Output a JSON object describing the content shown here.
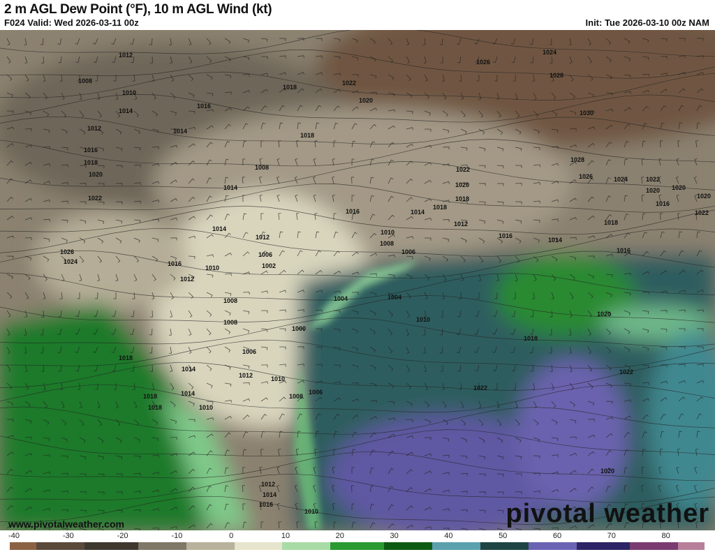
{
  "header": {
    "title": "2 m AGL Dew Point (°F), 10 m AGL Wind (kt)",
    "valid": "F024 Valid: Wed 2026-03-11 00z",
    "init": "Init: Tue 2026-03-10 00z NAM"
  },
  "map": {
    "isobar_labels": [
      "1012",
      "1008",
      "1010",
      "1014",
      "1016",
      "1012",
      "1016",
      "1018",
      "1020",
      "1022",
      "1014",
      "1018",
      "1014",
      "1008",
      "1022",
      "1020",
      "1018",
      "1016",
      "1012",
      "1010",
      "1026",
      "1024",
      "1006",
      "1002",
      "1008",
      "1012",
      "1014",
      "1008",
      "1006",
      "1000",
      "1012",
      "1010",
      "1014",
      "1018",
      "1008",
      "1006",
      "1004",
      "1004",
      "1010",
      "1016",
      "1014",
      "1010",
      "1008",
      "1006",
      "1012",
      "1016",
      "1018",
      "1022",
      "1020",
      "1018",
      "1026",
      "1024",
      "1028",
      "1030",
      "1028",
      "1026",
      "1024",
      "1022",
      "1020",
      "1016",
      "1018",
      "1016",
      "1014",
      "1020",
      "1022",
      "1020",
      "1018",
      "1022",
      "1020",
      "1022",
      "1012",
      "1014",
      "1016",
      "1010",
      "1020",
      "1018",
      "1010",
      "1018",
      "1014"
    ],
    "watermark_url": "www.pivotalweather.com",
    "logo": "pivotal weather"
  },
  "colorbar": {
    "units": "°F",
    "range": [
      -40,
      90
    ],
    "ticks": [
      "-40",
      "-30",
      "-20",
      "-10",
      "0",
      "10",
      "20",
      "30",
      "40",
      "50",
      "60",
      "70",
      "80"
    ],
    "colors": [
      "#8a6243",
      "#5a4a3c",
      "#3e382f",
      "#7f7767",
      "#b8b29c",
      "#e6e4cc",
      "#a9dba6",
      "#2a9a31",
      "#0d5b12",
      "#5aa0ad",
      "#1f4444",
      "#6a63b4",
      "#2d2466",
      "#7a3c70",
      "#b87f9a"
    ]
  }
}
